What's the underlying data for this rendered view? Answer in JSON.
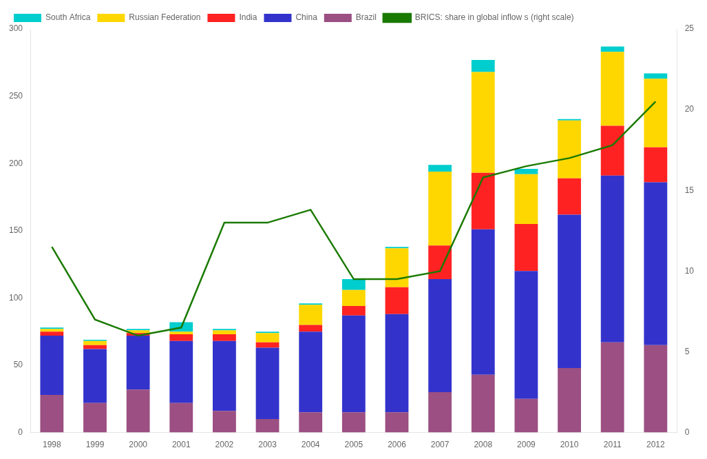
{
  "chart_data": {
    "type": "bar",
    "stacked": true,
    "grid": false,
    "legend": "upper left",
    "categories": [
      "1998",
      "1999",
      "2000",
      "2001",
      "2002",
      "2003",
      "2004",
      "2005",
      "2006",
      "2007",
      "2008",
      "2009",
      "2010",
      "2011",
      "2012"
    ],
    "series": [
      {
        "name": "Brazil",
        "color": "#9B4F82",
        "values": [
          28,
          22,
          32,
          22,
          16,
          10,
          15,
          15,
          15,
          30,
          43,
          25,
          48,
          67,
          65
        ]
      },
      {
        "name": "China",
        "color": "#3333CC",
        "values": [
          44,
          40,
          40,
          46,
          52,
          53,
          60,
          72,
          73,
          84,
          108,
          95,
          114,
          124,
          121
        ]
      },
      {
        "name": "India",
        "color": "#FF2222",
        "values": [
          3,
          3,
          2,
          5,
          5,
          4,
          5,
          7,
          20,
          25,
          42,
          35,
          27,
          37,
          26
        ]
      },
      {
        "name": "Russian Federation",
        "color": "#FFD700",
        "values": [
          2,
          3,
          2,
          2,
          3,
          7,
          15,
          12,
          29,
          55,
          75,
          37,
          43,
          55,
          51
        ]
      },
      {
        "name": "South Africa",
        "color": "#00CDCD",
        "values": [
          1,
          1,
          1,
          7,
          1,
          1,
          1,
          8,
          1,
          5,
          9,
          4,
          1,
          4,
          4
        ]
      },
      {
        "name": "BRICS: share in global inflow s (right scale)",
        "type": "line",
        "axis": "y2",
        "color": "#1A7A00",
        "values": [
          11.5,
          7.0,
          6.0,
          6.5,
          13.0,
          13.0,
          13.8,
          9.5,
          9.5,
          10.0,
          15.8,
          16.5,
          17.0,
          17.8,
          20.5
        ]
      }
    ],
    "ylim": [
      0,
      300
    ],
    "yticks": [
      0,
      50,
      100,
      150,
      200,
      250,
      300
    ],
    "y2lim": [
      0,
      25
    ],
    "y2ticks": [
      0,
      5,
      10,
      15,
      20,
      25
    ]
  }
}
